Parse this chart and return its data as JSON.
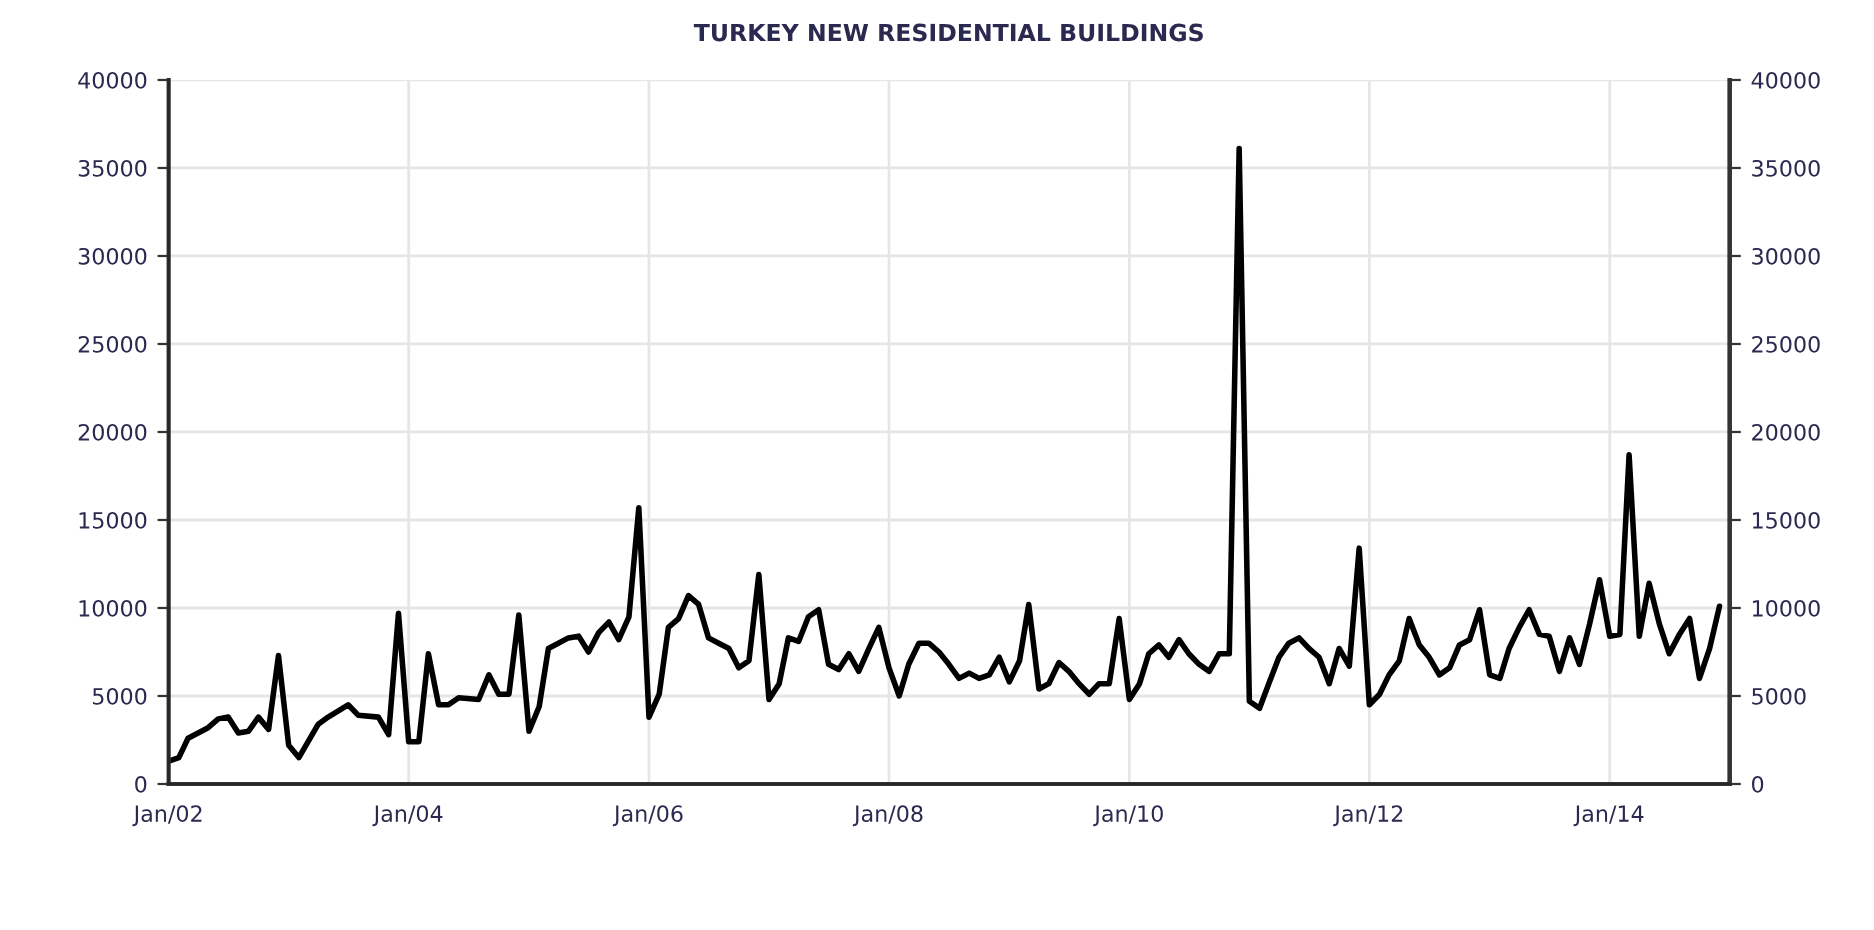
{
  "chart_data": {
    "type": "line",
    "title": "TURKEY NEW RESIDENTIAL BUILDINGS",
    "series": [
      {
        "color": "#000000",
        "x": [
          "2002-01",
          "2002-02",
          "2002-03",
          "2002-05",
          "2002-06",
          "2002-07",
          "2002-08",
          "2002-09",
          "2002-10",
          "2002-11",
          "2002-12",
          "2003-01",
          "2003-02",
          "2003-04",
          "2003-05",
          "2003-07",
          "2003-08",
          "2003-10",
          "2003-11",
          "2003-12",
          "2004-01",
          "2004-02",
          "2004-03",
          "2004-04",
          "2004-05",
          "2004-06",
          "2004-08",
          "2004-09",
          "2004-10",
          "2004-11",
          "2004-12",
          "2005-01",
          "2005-02",
          "2005-03",
          "2005-05",
          "2005-06",
          "2005-07",
          "2005-08",
          "2005-09",
          "2005-10",
          "2005-11",
          "2005-12",
          "2006-01",
          "2006-02",
          "2006-03",
          "2006-04",
          "2006-05",
          "2006-06",
          "2006-07",
          "2006-08",
          "2006-09",
          "2006-10",
          "2006-11",
          "2006-12",
          "2007-01",
          "2007-02",
          "2007-03",
          "2007-04",
          "2007-05",
          "2007-06",
          "2007-07",
          "2007-08",
          "2007-09",
          "2007-10",
          "2007-11",
          "2007-12",
          "2008-01",
          "2008-02",
          "2008-03",
          "2008-04",
          "2008-05",
          "2008-06",
          "2008-07",
          "2008-08",
          "2008-09",
          "2008-10",
          "2008-11",
          "2008-12",
          "2009-01",
          "2009-02",
          "2009-03",
          "2009-04",
          "2009-05",
          "2009-06",
          "2009-07",
          "2009-08",
          "2009-09",
          "2009-10",
          "2009-11",
          "2009-12",
          "2010-01",
          "2010-02",
          "2010-03",
          "2010-04",
          "2010-05",
          "2010-06",
          "2010-07",
          "2010-08",
          "2010-09",
          "2010-10",
          "2010-11",
          "2010-12",
          "2011-01",
          "2011-02",
          "2011-03",
          "2011-04",
          "2011-05",
          "2011-06",
          "2011-07",
          "2011-08",
          "2011-09",
          "2011-10",
          "2011-11",
          "2011-12",
          "2012-01",
          "2012-02",
          "2012-03",
          "2012-04",
          "2012-05",
          "2012-06",
          "2012-07",
          "2012-08",
          "2012-09",
          "2012-10",
          "2012-11",
          "2012-12",
          "2013-01",
          "2013-02",
          "2013-03",
          "2013-04",
          "2013-05",
          "2013-06",
          "2013-07",
          "2013-08",
          "2013-09",
          "2013-10",
          "2013-11",
          "2013-12",
          "2014-01",
          "2014-02",
          "2014-03",
          "2014-04",
          "2014-05",
          "2014-06",
          "2014-07",
          "2014-08",
          "2014-09",
          "2014-10",
          "2014-11",
          "2014-12"
        ],
        "values": [
          1300,
          1500,
          2600,
          3200,
          3700,
          3800,
          2900,
          3000,
          3800,
          3100,
          7300,
          2200,
          1500,
          3400,
          3800,
          4500,
          3900,
          3800,
          2800,
          9700,
          2400,
          2400,
          7400,
          4500,
          4500,
          4900,
          4800,
          6200,
          5100,
          5100,
          9600,
          3000,
          4400,
          7700,
          8300,
          8400,
          7500,
          8600,
          9200,
          8200,
          9500,
          15700,
          3800,
          5100,
          8900,
          9400,
          10700,
          10200,
          8300,
          8000,
          7700,
          6600,
          7000,
          11900,
          4800,
          5700,
          8300,
          8100,
          9500,
          9900,
          6800,
          6500,
          7400,
          6400,
          7700,
          8900,
          6600,
          5000,
          6800,
          8000,
          8000,
          7500,
          6800,
          6000,
          6300,
          6000,
          6200,
          7200,
          5800,
          7000,
          10200,
          5400,
          5700,
          6900,
          6400,
          5700,
          5100,
          5700,
          5700,
          9400,
          4800,
          5700,
          7400,
          7900,
          7200,
          8200,
          7400,
          6800,
          6400,
          7400,
          7400,
          36100,
          4700,
          4300,
          5700,
          7200,
          8000,
          8300,
          7700,
          7200,
          5700,
          7700,
          6700,
          13400,
          4500,
          5100,
          6200,
          7000,
          9400,
          7900,
          7200,
          6200,
          6600,
          7900,
          8200,
          9900,
          6200,
          6000,
          7700,
          8900,
          9900,
          8500,
          8400,
          6400,
          8300,
          6800,
          9100,
          11600,
          8400,
          8500,
          18700,
          8400,
          11400,
          9100,
          7400,
          8500,
          9400,
          6000,
          7700,
          10100
        ]
      }
    ],
    "xlim": [
      "2002-01",
      "2015-01"
    ],
    "xticks": [
      {
        "value": "2002-01",
        "label": "Jan/02"
      },
      {
        "value": "2004-01",
        "label": "Jan/04"
      },
      {
        "value": "2006-01",
        "label": "Jan/06"
      },
      {
        "value": "2008-01",
        "label": "Jan/08"
      },
      {
        "value": "2010-01",
        "label": "Jan/10"
      },
      {
        "value": "2012-01",
        "label": "Jan/12"
      },
      {
        "value": "2014-01",
        "label": "Jan/14"
      }
    ],
    "ylim": [
      0,
      40000
    ],
    "yticks": [
      0,
      5000,
      10000,
      15000,
      20000,
      25000,
      30000,
      35000,
      40000
    ],
    "y2lim": [
      0,
      40000
    ],
    "y2ticks": [
      0,
      5000,
      10000,
      15000,
      20000,
      25000,
      30000,
      35000,
      40000
    ],
    "grid": true,
    "marker": "none",
    "line_style": "solid"
  }
}
